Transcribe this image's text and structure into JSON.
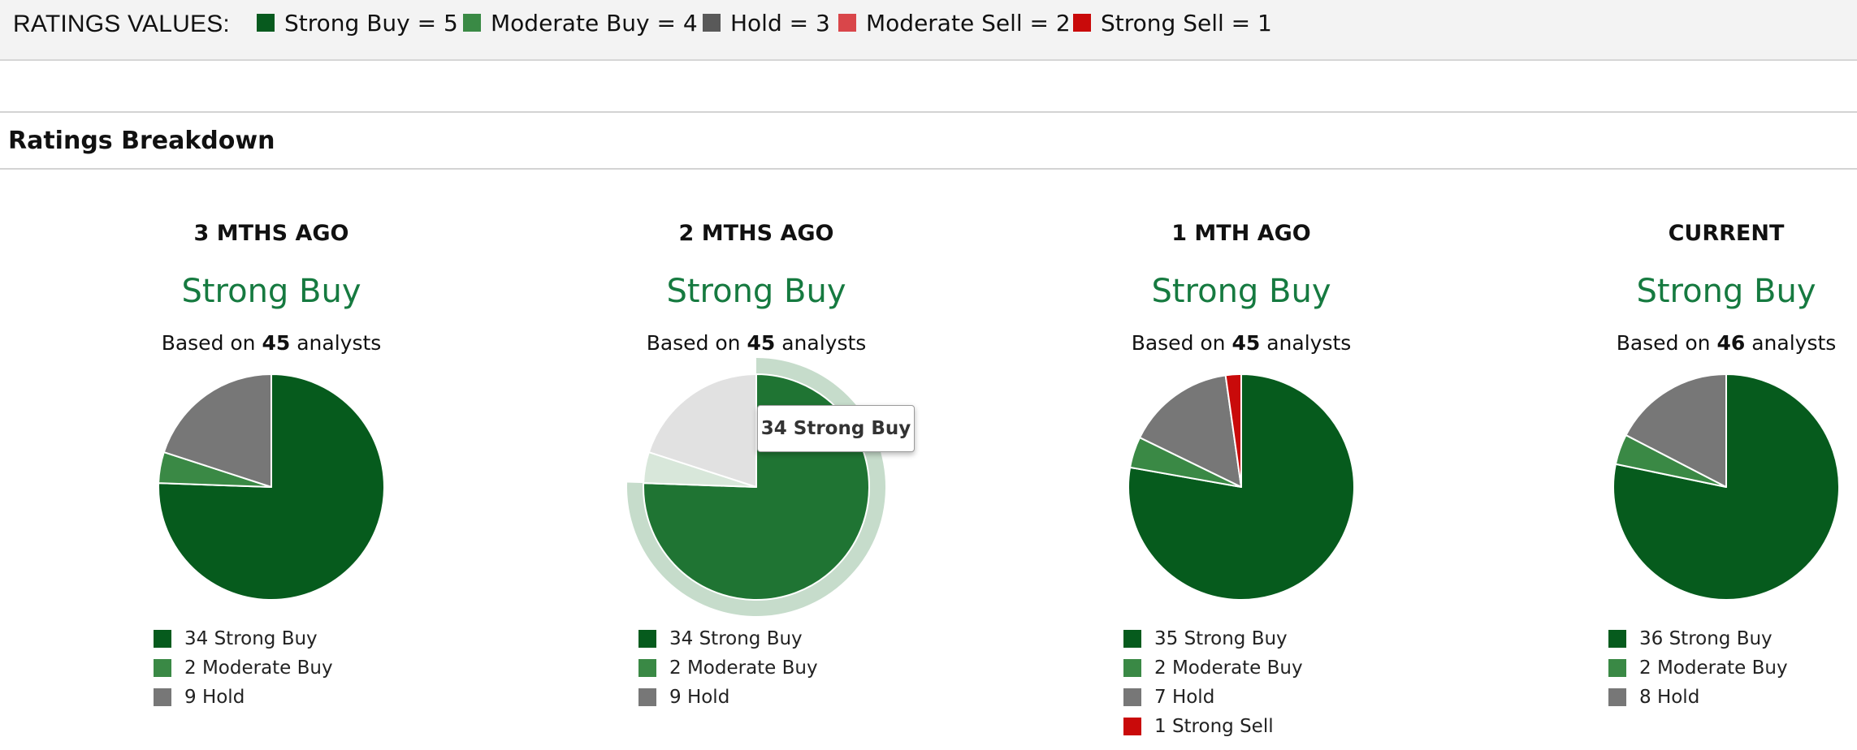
{
  "header": {
    "title": "RATINGS VALUES:",
    "legend": [
      {
        "label": "Strong Buy = 5",
        "color": "#075a1e"
      },
      {
        "label": "Moderate Buy = 4",
        "color": "#3a8a45"
      },
      {
        "label": "Hold = 3",
        "color": "#595959"
      },
      {
        "label": "Moderate Sell = 2",
        "color": "#d9464a"
      },
      {
        "label": "Strong Sell = 1",
        "color": "#c90a0a"
      }
    ]
  },
  "section": {
    "title": "Ratings Breakdown"
  },
  "tooltip": {
    "text": "34 Strong Buy"
  },
  "chart_data": [
    {
      "type": "pie",
      "title": "3 MTHS AGO",
      "consensus": "Strong Buy",
      "based_prefix": "Based on",
      "analysts": "45",
      "based_suffix": "analysts",
      "slices": [
        {
          "name": "Strong Buy",
          "value": 34,
          "label": "34 Strong Buy",
          "color": "#065b1d"
        },
        {
          "name": "Moderate Buy",
          "value": 2,
          "label": "2 Moderate Buy",
          "color": "#3a8945"
        },
        {
          "name": "Hold",
          "value": 9,
          "label": "9 Hold",
          "color": "#777777"
        }
      ]
    },
    {
      "type": "pie",
      "title": "2 MTHS AGO",
      "consensus": "Strong Buy",
      "based_prefix": "Based on",
      "analysts": "45",
      "based_suffix": "analysts",
      "highlight": "Strong Buy",
      "slices": [
        {
          "name": "Strong Buy",
          "value": 34,
          "label": "34 Strong Buy",
          "color": "#065b1d"
        },
        {
          "name": "Moderate Buy",
          "value": 2,
          "label": "2 Moderate Buy",
          "color": "#3a8945"
        },
        {
          "name": "Hold",
          "value": 9,
          "label": "9 Hold",
          "color": "#777777"
        }
      ]
    },
    {
      "type": "pie",
      "title": "1 MTH AGO",
      "consensus": "Strong Buy",
      "based_prefix": "Based on",
      "analysts": "45",
      "based_suffix": "analysts",
      "slices": [
        {
          "name": "Strong Buy",
          "value": 35,
          "label": "35 Strong Buy",
          "color": "#065b1d"
        },
        {
          "name": "Moderate Buy",
          "value": 2,
          "label": "2 Moderate Buy",
          "color": "#3a8945"
        },
        {
          "name": "Hold",
          "value": 7,
          "label": "7 Hold",
          "color": "#777777"
        },
        {
          "name": "Strong Sell",
          "value": 1,
          "label": "1 Strong Sell",
          "color": "#c90a0a"
        }
      ]
    },
    {
      "type": "pie",
      "title": "CURRENT",
      "consensus": "Strong Buy",
      "based_prefix": "Based on",
      "analysts": "46",
      "based_suffix": "analysts",
      "slices": [
        {
          "name": "Strong Buy",
          "value": 36,
          "label": "36 Strong Buy",
          "color": "#065b1d"
        },
        {
          "name": "Moderate Buy",
          "value": 2,
          "label": "2 Moderate Buy",
          "color": "#3a8945"
        },
        {
          "name": "Hold",
          "value": 8,
          "label": "8 Hold",
          "color": "#777777"
        }
      ]
    }
  ]
}
